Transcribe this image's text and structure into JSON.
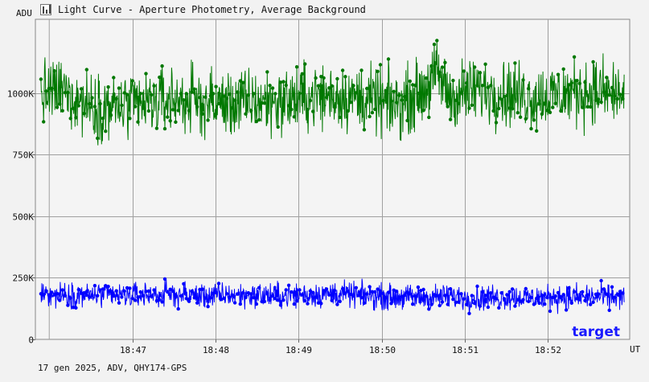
{
  "window": {
    "title": "Light Curve - Aperture Photometry, Average Background",
    "footer": "17 gen 2025, ADV, QHY174-GPS"
  },
  "chart_data": {
    "type": "line",
    "ylabel": "ADU",
    "xlabel": "UT",
    "ylim": [
      0,
      1300000
    ],
    "xlim": [
      "18:45:50",
      "18:52:59"
    ],
    "y_ticks": [
      0,
      250000,
      500000,
      750000,
      1000000
    ],
    "y_tick_labels": [
      "0",
      "250K",
      "500K",
      "750K",
      "1000K"
    ],
    "x_ticks": [
      "18:47",
      "18:48",
      "18:49",
      "18:50",
      "18:51",
      "18:52"
    ],
    "grid": true,
    "legend": "bottom-right",
    "legend_entries": [
      "target"
    ],
    "series": [
      {
        "role": "comparison",
        "color": "#007800",
        "marker": "dot",
        "x": [
          "18:45:50",
          "18:46:10",
          "18:46:30",
          "18:46:50",
          "18:47:10",
          "18:47:30",
          "18:47:50",
          "18:48:10",
          "18:48:30",
          "18:48:50",
          "18:49:10",
          "18:49:30",
          "18:49:50",
          "18:50:10",
          "18:50:30",
          "18:50:40",
          "18:50:50",
          "18:51:10",
          "18:51:30",
          "18:51:50",
          "18:52:10",
          "18:52:30",
          "18:52:50"
        ],
        "y": [
          985000,
          1010000,
          950000,
          940000,
          955000,
          975000,
          965000,
          955000,
          965000,
          970000,
          985000,
          990000,
          975000,
          950000,
          1010000,
          1080000,
          985000,
          1015000,
          1000000,
          985000,
          995000,
          1010000,
          995000
        ],
        "y_min": 775000,
        "y_max": 1240000
      },
      {
        "name": "target",
        "color": "#0000ff",
        "marker": "dot",
        "x": [
          "18:45:50",
          "18:46:10",
          "18:46:30",
          "18:46:50",
          "18:47:10",
          "18:47:30",
          "18:47:50",
          "18:48:10",
          "18:48:30",
          "18:48:50",
          "18:49:10",
          "18:49:30",
          "18:49:50",
          "18:50:10",
          "18:50:30",
          "18:50:50",
          "18:51:10",
          "18:51:30",
          "18:51:50",
          "18:52:10",
          "18:52:30",
          "18:52:50"
        ],
        "y": [
          178000,
          182000,
          180000,
          177000,
          181000,
          183000,
          176000,
          179000,
          180000,
          178000,
          182000,
          185000,
          176000,
          172000,
          170000,
          174000,
          168000,
          171000,
          170000,
          172000,
          173000,
          171000
        ],
        "y_min": 95000,
        "y_max": 270000
      }
    ]
  }
}
